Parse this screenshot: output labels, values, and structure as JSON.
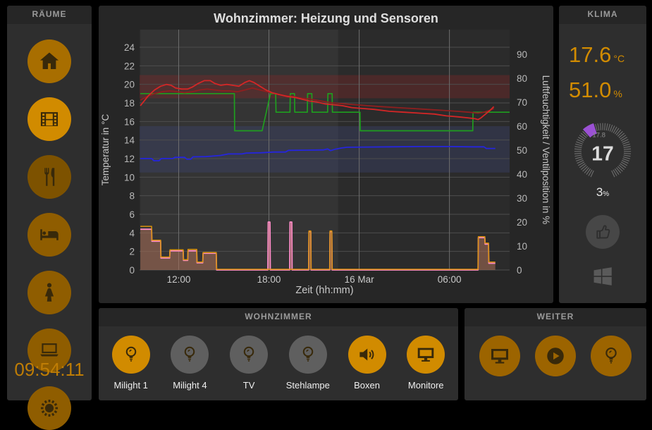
{
  "sidebar": {
    "header": "RÄUME",
    "clock": "09:54:11",
    "items": [
      {
        "name": "home",
        "icon": "home-icon",
        "color": "#a86e00",
        "active": false
      },
      {
        "name": "media",
        "icon": "film-icon",
        "color": "#d18b00",
        "active": true
      },
      {
        "name": "kitchen",
        "icon": "utensils-icon",
        "color": "#7d5200",
        "active": false
      },
      {
        "name": "bedroom",
        "icon": "bed-icon",
        "color": "#8f5d00",
        "active": false
      },
      {
        "name": "bathroom",
        "icon": "woman-icon",
        "color": "#8f5d00",
        "active": false
      },
      {
        "name": "office",
        "icon": "laptop-icon",
        "color": "#8f5d00",
        "active": false
      },
      {
        "name": "outdoor",
        "icon": "sun-icon",
        "color": "#8f5d00",
        "active": false
      }
    ]
  },
  "chart_panel": {
    "title": "Wohnzimmer: Heizung und Sensoren"
  },
  "chart_data": {
    "type": "line",
    "title": "Wohnzimmer: Heizung und Sensoren",
    "xlabel": "Zeit (hh:mm)",
    "ylabel_left": "Temperatur in °C",
    "ylabel_right": "Luftfeuchtigkeit / Ventilposition in %",
    "x_domain": [
      9.4,
      34.0
    ],
    "x_ticks": [
      {
        "h": 12,
        "label": "12:00"
      },
      {
        "h": 18,
        "label": "18:00"
      },
      {
        "h": 24,
        "label": "16 Mar"
      },
      {
        "h": 30,
        "label": "06:00"
      }
    ],
    "y_left": {
      "min": 0,
      "max": 25.9,
      "tick_step": 2,
      "tick_max": 24
    },
    "y_right": {
      "min": 0,
      "max": 100.3,
      "tick_step": 10,
      "tick_max": 90
    },
    "grid": true,
    "legend": "none",
    "bands": [
      {
        "axis": "left",
        "from": 18.5,
        "to": 21.0,
        "color": "rgba(150,35,35,0.30)"
      },
      {
        "axis": "left",
        "from": 10.5,
        "to": 15.5,
        "color": "rgba(62,70,125,0.32)"
      }
    ],
    "day_shade": {
      "from_h": 9.45,
      "to_h": 22.6,
      "color": "rgba(255,255,255,0.045)"
    },
    "series": [
      {
        "name": "ventilposition",
        "axis": "right",
        "color": "#ff8cc8",
        "width": 1.8,
        "fill": "rgba(172,112,88,0.55)",
        "points": [
          [
            9.45,
            17
          ],
          [
            10.2,
            17
          ],
          [
            10.22,
            12
          ],
          [
            10.8,
            12
          ],
          [
            10.82,
            5
          ],
          [
            11.4,
            5
          ],
          [
            11.42,
            8
          ],
          [
            12.3,
            8
          ],
          [
            12.32,
            4
          ],
          [
            12.6,
            4
          ],
          [
            12.62,
            8
          ],
          [
            13.2,
            8
          ],
          [
            13.22,
            3
          ],
          [
            13.6,
            3
          ],
          [
            13.62,
            7
          ],
          [
            14.5,
            7
          ],
          [
            14.52,
            0
          ],
          [
            17.93,
            0
          ],
          [
            17.95,
            20
          ],
          [
            18.07,
            20
          ],
          [
            18.09,
            0
          ],
          [
            19.38,
            0
          ],
          [
            19.4,
            20
          ],
          [
            19.52,
            20
          ],
          [
            19.54,
            0
          ],
          [
            20.64,
            0
          ],
          [
            20.66,
            16
          ],
          [
            20.78,
            16
          ],
          [
            20.8,
            0
          ],
          [
            22.04,
            0
          ],
          [
            22.06,
            16
          ],
          [
            22.18,
            16
          ],
          [
            22.2,
            0
          ],
          [
            31.9,
            0
          ],
          [
            31.92,
            13.5
          ],
          [
            32.35,
            13.5
          ],
          [
            32.37,
            10.8
          ],
          [
            32.6,
            10.8
          ],
          [
            32.62,
            2.8
          ],
          [
            33.05,
            2.8
          ]
        ]
      },
      {
        "name": "ventil-soll",
        "axis": "right",
        "color": "#d9920a",
        "width": 1.5,
        "points": [
          [
            9.45,
            18.2
          ],
          [
            10.2,
            18.2
          ],
          [
            10.22,
            12.4
          ],
          [
            10.8,
            12.4
          ],
          [
            10.82,
            5.4
          ],
          [
            11.4,
            5.4
          ],
          [
            11.42,
            8.4
          ],
          [
            12.3,
            8.4
          ],
          [
            12.32,
            4.3
          ],
          [
            12.6,
            4.3
          ],
          [
            12.62,
            8.6
          ],
          [
            13.2,
            8.6
          ],
          [
            13.22,
            3.3
          ],
          [
            13.6,
            3.3
          ],
          [
            13.62,
            7.3
          ],
          [
            14.5,
            7.3
          ],
          [
            14.52,
            0.3
          ],
          [
            20.64,
            0.3
          ],
          [
            20.66,
            16.3
          ],
          [
            20.78,
            16.3
          ],
          [
            20.8,
            0.3
          ],
          [
            22.04,
            0.3
          ],
          [
            22.06,
            16.3
          ],
          [
            22.18,
            16.3
          ],
          [
            22.2,
            0.3
          ],
          [
            31.9,
            0.3
          ],
          [
            31.92,
            13.9
          ],
          [
            32.35,
            13.9
          ],
          [
            32.37,
            11.2
          ],
          [
            32.6,
            11.2
          ],
          [
            32.62,
            3.3
          ],
          [
            33.05,
            3.3
          ]
        ]
      },
      {
        "name": "soll-temperatur",
        "axis": "left",
        "color": "#1f9e1f",
        "width": 1.7,
        "points": [
          [
            9.45,
            19
          ],
          [
            15.7,
            19
          ],
          [
            15.72,
            15
          ],
          [
            17.55,
            15
          ],
          [
            18.1,
            19
          ],
          [
            18.45,
            19
          ],
          [
            18.47,
            17
          ],
          [
            19.4,
            17
          ],
          [
            19.42,
            19
          ],
          [
            19.7,
            19
          ],
          [
            19.72,
            17
          ],
          [
            20.55,
            17
          ],
          [
            20.57,
            19
          ],
          [
            20.85,
            19
          ],
          [
            20.87,
            17
          ],
          [
            21.9,
            17
          ],
          [
            21.92,
            19
          ],
          [
            22.2,
            19
          ],
          [
            22.22,
            17
          ],
          [
            24.05,
            17
          ],
          [
            24.07,
            15
          ],
          [
            31.55,
            15
          ],
          [
            31.57,
            17
          ],
          [
            34.0,
            17
          ]
        ]
      },
      {
        "name": "temperatur-2",
        "axis": "left",
        "color": "#8f1f1f",
        "width": 1.8,
        "points": [
          [
            9.45,
            18.3
          ],
          [
            9.9,
            18.7
          ],
          [
            10.4,
            19.0
          ],
          [
            10.9,
            19.2
          ],
          [
            11.4,
            19.3
          ],
          [
            11.9,
            19.2
          ],
          [
            12.4,
            19.1
          ],
          [
            12.9,
            19.2
          ],
          [
            13.4,
            19.4
          ],
          [
            13.9,
            19.5
          ],
          [
            14.4,
            19.4
          ],
          [
            14.9,
            19.3
          ],
          [
            15.4,
            19.3
          ],
          [
            15.9,
            19.2
          ],
          [
            16.4,
            19.4
          ],
          [
            16.9,
            19.6
          ],
          [
            17.4,
            19.4
          ],
          [
            17.9,
            19.2
          ],
          [
            18.4,
            19.0
          ],
          [
            19.0,
            18.8
          ],
          [
            19.6,
            18.7
          ],
          [
            20.2,
            18.5
          ],
          [
            20.8,
            18.4
          ],
          [
            21.5,
            18.2
          ],
          [
            22.2,
            18.0
          ],
          [
            23.0,
            17.9
          ],
          [
            23.8,
            17.8
          ],
          [
            24.6,
            17.7
          ],
          [
            25.5,
            17.6
          ],
          [
            26.5,
            17.5
          ],
          [
            27.5,
            17.4
          ],
          [
            28.5,
            17.3
          ],
          [
            29.5,
            17.2
          ],
          [
            30.5,
            17.1
          ],
          [
            31.3,
            17.0
          ],
          [
            31.9,
            16.9
          ],
          [
            32.3,
            17.0
          ],
          [
            32.7,
            17.2
          ],
          [
            32.95,
            17.4
          ]
        ]
      },
      {
        "name": "temperatur",
        "axis": "left",
        "color": "#d42626",
        "width": 1.8,
        "points": [
          [
            9.45,
            17.7
          ],
          [
            9.7,
            18.2
          ],
          [
            10.0,
            18.8
          ],
          [
            10.4,
            19.4
          ],
          [
            10.8,
            19.8
          ],
          [
            11.2,
            20.0
          ],
          [
            11.5,
            19.9
          ],
          [
            11.8,
            19.6
          ],
          [
            12.2,
            19.5
          ],
          [
            12.6,
            19.5
          ],
          [
            12.9,
            19.7
          ],
          [
            13.3,
            20.1
          ],
          [
            13.7,
            20.4
          ],
          [
            14.1,
            20.4
          ],
          [
            14.4,
            20.1
          ],
          [
            14.8,
            19.9
          ],
          [
            15.2,
            20.0
          ],
          [
            15.6,
            19.9
          ],
          [
            16.0,
            19.8
          ],
          [
            16.4,
            20.2
          ],
          [
            16.7,
            20.4
          ],
          [
            17.0,
            20.2
          ],
          [
            17.4,
            19.8
          ],
          [
            17.8,
            19.4
          ],
          [
            18.2,
            19.1
          ],
          [
            18.7,
            18.9
          ],
          [
            19.2,
            18.7
          ],
          [
            19.7,
            18.6
          ],
          [
            20.2,
            18.4
          ],
          [
            20.7,
            18.2
          ],
          [
            21.2,
            18.1
          ],
          [
            21.7,
            17.9
          ],
          [
            22.3,
            17.8
          ],
          [
            22.9,
            17.7
          ],
          [
            23.5,
            17.5
          ],
          [
            24.2,
            17.4
          ],
          [
            25.0,
            17.3
          ],
          [
            26.0,
            17.1
          ],
          [
            27.0,
            17.0
          ],
          [
            28.0,
            16.9
          ],
          [
            29.0,
            16.8
          ],
          [
            29.8,
            16.6
          ],
          [
            30.6,
            16.5
          ],
          [
            31.2,
            16.4
          ],
          [
            31.7,
            16.3
          ],
          [
            31.9,
            16.2
          ],
          [
            32.1,
            16.4
          ],
          [
            32.4,
            16.8
          ],
          [
            32.7,
            17.2
          ],
          [
            32.95,
            17.6
          ]
        ]
      },
      {
        "name": "luftfeuchtigkeit",
        "axis": "right",
        "color": "#2525dd",
        "width": 1.8,
        "points": [
          [
            9.45,
            46.5
          ],
          [
            10.2,
            46.5
          ],
          [
            10.35,
            45.6
          ],
          [
            10.7,
            45.6
          ],
          [
            10.85,
            46.5
          ],
          [
            11.6,
            46.5
          ],
          [
            11.75,
            47.0
          ],
          [
            12.4,
            47.0
          ],
          [
            12.55,
            46.2
          ],
          [
            12.8,
            46.2
          ],
          [
            12.95,
            47.2
          ],
          [
            13.8,
            47.3
          ],
          [
            14.8,
            47.8
          ],
          [
            15.3,
            48.4
          ],
          [
            16.2,
            48.4
          ],
          [
            16.5,
            48.8
          ],
          [
            17.5,
            48.9
          ],
          [
            18.3,
            49.2
          ],
          [
            19.1,
            49.2
          ],
          [
            19.3,
            49.9
          ],
          [
            20.5,
            50.0
          ],
          [
            21.6,
            50.1
          ],
          [
            21.9,
            50.5
          ],
          [
            22.1,
            49.8
          ],
          [
            22.4,
            50.4
          ],
          [
            22.8,
            50.9
          ],
          [
            23.2,
            51.2
          ],
          [
            24.5,
            51.3
          ],
          [
            26.0,
            51.4
          ],
          [
            28.0,
            51.5
          ],
          [
            30.0,
            51.5
          ],
          [
            31.5,
            51.4
          ],
          [
            32.3,
            51.4
          ],
          [
            32.45,
            50.7
          ],
          [
            33.05,
            50.7
          ]
        ]
      }
    ]
  },
  "klima": {
    "header": "KLIMA",
    "temperature": "17.6",
    "temperature_unit": "°C",
    "humidity": "51.0",
    "humidity_unit": "%",
    "gauge": {
      "current_label": "17.8",
      "setpoint": "17",
      "valve": "3",
      "valve_unit": "%"
    }
  },
  "wohnzimmer": {
    "header": "WOHNZIMMER",
    "buttons": [
      {
        "label": "Milight 1",
        "icon": "bulb-icon",
        "active": true,
        "color": "#d18b00"
      },
      {
        "label": "Milight 4",
        "icon": "bulb-icon",
        "active": false,
        "color": "#5f5f5f"
      },
      {
        "label": "TV",
        "icon": "bulb-icon",
        "active": false,
        "color": "#5f5f5f"
      },
      {
        "label": "Stehlampe",
        "icon": "bulb-icon",
        "active": false,
        "color": "#5f5f5f"
      },
      {
        "label": "Boxen",
        "icon": "speaker-icon",
        "active": true,
        "color": "#d18b00"
      },
      {
        "label": "Monitore",
        "icon": "monitor-icon",
        "active": true,
        "color": "#d18b00"
      }
    ]
  },
  "weiter": {
    "header": "WEITER",
    "buttons": [
      {
        "name": "monitor",
        "icon": "monitor-icon",
        "color": "#9c6400"
      },
      {
        "name": "play",
        "icon": "play-icon",
        "color": "#9c6400"
      },
      {
        "name": "light",
        "icon": "bulb-icon",
        "color": "#9c6400"
      }
    ]
  },
  "colors": {
    "accent": "#d18b00",
    "dim_orange": "#9c6400",
    "inactive_gray": "#5f5f5f",
    "thumb_gray": "#474747",
    "clock": "#bf7d05",
    "gauge_purple": "#9b51d4",
    "chart_red": "#d42626",
    "chart_dark_red": "#8f1f1f",
    "chart_green": "#1f9e1f",
    "chart_blue": "#2525dd",
    "chart_pink": "#ff8cc8",
    "chart_orange": "#d9920a"
  }
}
